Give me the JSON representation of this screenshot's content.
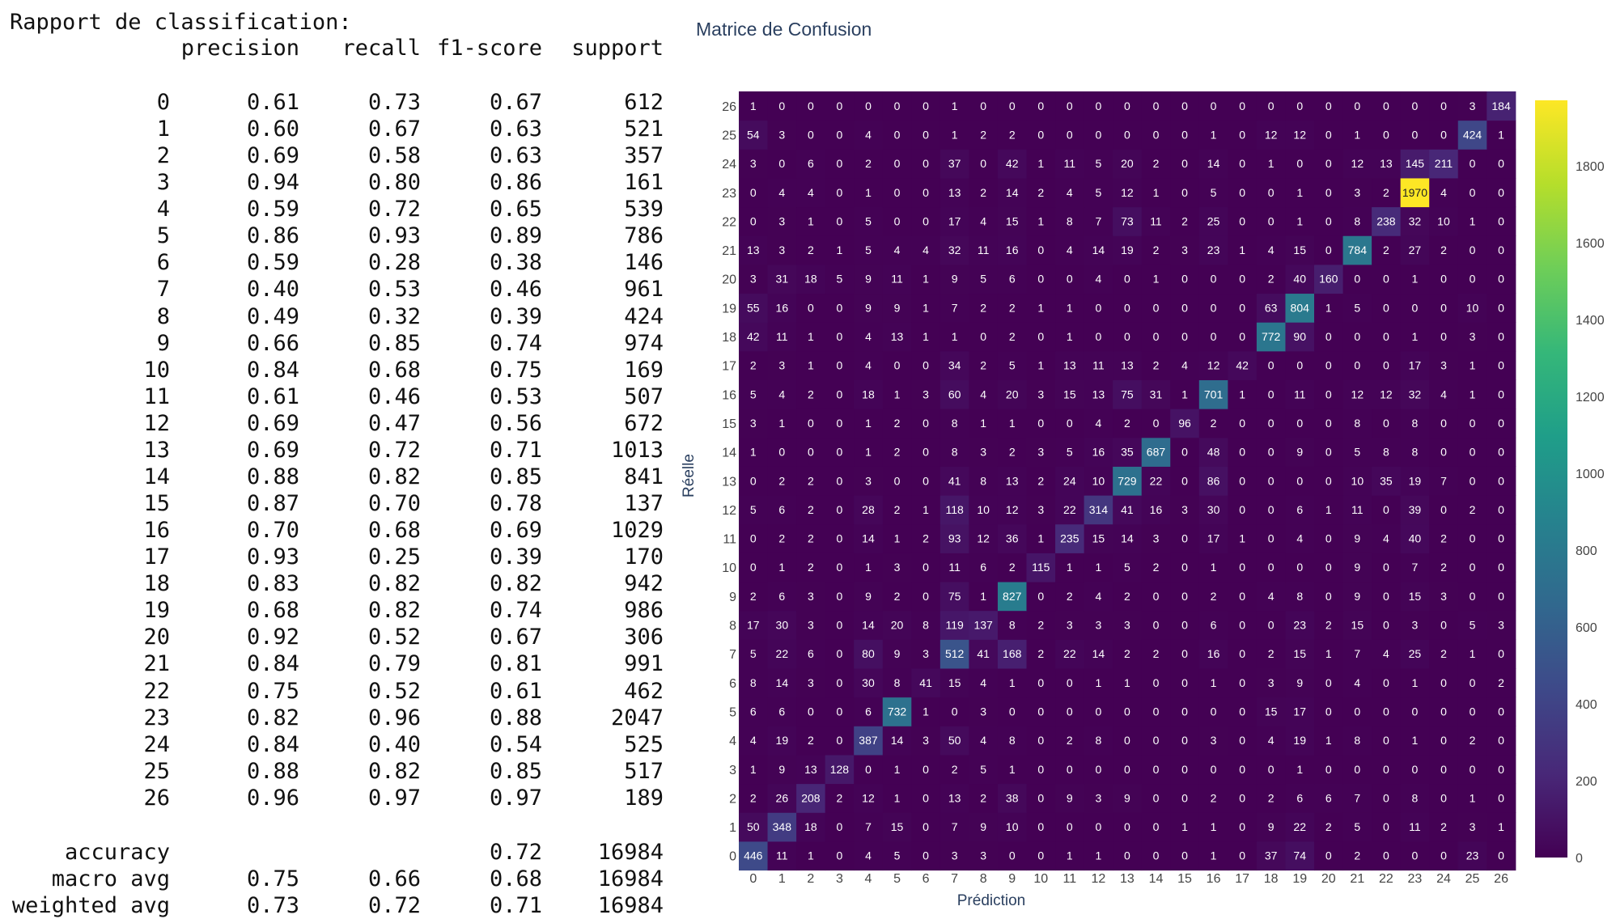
{
  "report": {
    "title": "Rapport de classification:",
    "headers": [
      "precision",
      "recall",
      "f1-score",
      "support"
    ],
    "rows": [
      [
        "0",
        "0.61",
        "0.73",
        "0.67",
        "612"
      ],
      [
        "1",
        "0.60",
        "0.67",
        "0.63",
        "521"
      ],
      [
        "2",
        "0.69",
        "0.58",
        "0.63",
        "357"
      ],
      [
        "3",
        "0.94",
        "0.80",
        "0.86",
        "161"
      ],
      [
        "4",
        "0.59",
        "0.72",
        "0.65",
        "539"
      ],
      [
        "5",
        "0.86",
        "0.93",
        "0.89",
        "786"
      ],
      [
        "6",
        "0.59",
        "0.28",
        "0.38",
        "146"
      ],
      [
        "7",
        "0.40",
        "0.53",
        "0.46",
        "961"
      ],
      [
        "8",
        "0.49",
        "0.32",
        "0.39",
        "424"
      ],
      [
        "9",
        "0.66",
        "0.85",
        "0.74",
        "974"
      ],
      [
        "10",
        "0.84",
        "0.68",
        "0.75",
        "169"
      ],
      [
        "11",
        "0.61",
        "0.46",
        "0.53",
        "507"
      ],
      [
        "12",
        "0.69",
        "0.47",
        "0.56",
        "672"
      ],
      [
        "13",
        "0.69",
        "0.72",
        "0.71",
        "1013"
      ],
      [
        "14",
        "0.88",
        "0.82",
        "0.85",
        "841"
      ],
      [
        "15",
        "0.87",
        "0.70",
        "0.78",
        "137"
      ],
      [
        "16",
        "0.70",
        "0.68",
        "0.69",
        "1029"
      ],
      [
        "17",
        "0.93",
        "0.25",
        "0.39",
        "170"
      ],
      [
        "18",
        "0.83",
        "0.82",
        "0.82",
        "942"
      ],
      [
        "19",
        "0.68",
        "0.82",
        "0.74",
        "986"
      ],
      [
        "20",
        "0.92",
        "0.52",
        "0.67",
        "306"
      ],
      [
        "21",
        "0.84",
        "0.79",
        "0.81",
        "991"
      ],
      [
        "22",
        "0.75",
        "0.52",
        "0.61",
        "462"
      ],
      [
        "23",
        "0.82",
        "0.96",
        "0.88",
        "2047"
      ],
      [
        "24",
        "0.84",
        "0.40",
        "0.54",
        "525"
      ],
      [
        "25",
        "0.88",
        "0.82",
        "0.85",
        "517"
      ],
      [
        "26",
        "0.96",
        "0.97",
        "0.97",
        "189"
      ]
    ],
    "summary": [
      [
        "accuracy",
        "",
        "",
        "0.72",
        "16984"
      ],
      [
        "macro avg",
        "0.75",
        "0.66",
        "0.68",
        "16984"
      ],
      [
        "weighted avg",
        "0.73",
        "0.72",
        "0.71",
        "16984"
      ]
    ]
  },
  "chart_data": {
    "type": "heatmap",
    "title": "Matrice de Confusion",
    "xlabel": "Prédiction",
    "ylabel": "Réelle",
    "labels": [
      0,
      1,
      2,
      3,
      4,
      5,
      6,
      7,
      8,
      9,
      10,
      11,
      12,
      13,
      14,
      15,
      16,
      17,
      18,
      19,
      20,
      21,
      22,
      23,
      24,
      25,
      26
    ],
    "colorscale": "viridis",
    "zlim": [
      0,
      1970
    ],
    "colorbar_ticks": [
      0,
      200,
      400,
      600,
      800,
      1000,
      1200,
      1400,
      1600,
      1800
    ],
    "matrix": [
      [
        446,
        11,
        1,
        0,
        4,
        5,
        0,
        3,
        3,
        0,
        0,
        1,
        1,
        0,
        0,
        0,
        1,
        0,
        37,
        74,
        0,
        2,
        0,
        0,
        0,
        23,
        0
      ],
      [
        50,
        348,
        18,
        0,
        7,
        15,
        0,
        7,
        9,
        10,
        0,
        0,
        0,
        0,
        0,
        1,
        1,
        0,
        9,
        22,
        2,
        5,
        0,
        11,
        2,
        3,
        1
      ],
      [
        2,
        26,
        208,
        2,
        12,
        1,
        0,
        13,
        2,
        38,
        0,
        9,
        3,
        9,
        0,
        0,
        2,
        0,
        2,
        6,
        6,
        7,
        0,
        8,
        0,
        1,
        0
      ],
      [
        1,
        9,
        13,
        128,
        0,
        1,
        0,
        2,
        5,
        1,
        0,
        0,
        0,
        0,
        0,
        0,
        0,
        0,
        0,
        1,
        0,
        0,
        0,
        0,
        0,
        0,
        0
      ],
      [
        4,
        19,
        2,
        0,
        387,
        14,
        3,
        50,
        4,
        8,
        0,
        2,
        8,
        0,
        0,
        0,
        3,
        0,
        4,
        19,
        1,
        8,
        0,
        1,
        0,
        2,
        0
      ],
      [
        6,
        6,
        0,
        0,
        6,
        732,
        1,
        0,
        3,
        0,
        0,
        0,
        0,
        0,
        0,
        0,
        0,
        0,
        15,
        17,
        0,
        0,
        0,
        0,
        0,
        0,
        0
      ],
      [
        8,
        14,
        3,
        0,
        30,
        8,
        41,
        15,
        4,
        1,
        0,
        0,
        1,
        1,
        0,
        0,
        1,
        0,
        3,
        9,
        0,
        4,
        0,
        1,
        0,
        0,
        2
      ],
      [
        5,
        22,
        6,
        0,
        80,
        9,
        3,
        512,
        41,
        168,
        2,
        22,
        14,
        2,
        2,
        0,
        16,
        0,
        2,
        15,
        1,
        7,
        4,
        25,
        2,
        1,
        0
      ],
      [
        17,
        30,
        3,
        0,
        14,
        20,
        8,
        119,
        137,
        8,
        2,
        3,
        3,
        3,
        0,
        0,
        6,
        0,
        0,
        23,
        2,
        15,
        0,
        3,
        0,
        5,
        3
      ],
      [
        2,
        6,
        3,
        0,
        9,
        2,
        0,
        75,
        1,
        827,
        0,
        2,
        4,
        2,
        0,
        0,
        2,
        0,
        4,
        8,
        0,
        9,
        0,
        15,
        3,
        0,
        0
      ],
      [
        0,
        1,
        2,
        0,
        1,
        3,
        0,
        11,
        6,
        2,
        115,
        1,
        1,
        5,
        2,
        0,
        1,
        0,
        0,
        0,
        0,
        9,
        0,
        7,
        2,
        0,
        0
      ],
      [
        0,
        2,
        2,
        0,
        14,
        1,
        2,
        93,
        12,
        36,
        1,
        235,
        15,
        14,
        3,
        0,
        17,
        1,
        0,
        4,
        0,
        9,
        4,
        40,
        2,
        0,
        0
      ],
      [
        5,
        6,
        2,
        0,
        28,
        2,
        1,
        118,
        10,
        12,
        3,
        22,
        314,
        41,
        16,
        3,
        30,
        0,
        0,
        6,
        1,
        11,
        0,
        39,
        0,
        2,
        0
      ],
      [
        0,
        2,
        2,
        0,
        3,
        0,
        0,
        41,
        8,
        13,
        2,
        24,
        10,
        729,
        22,
        0,
        86,
        0,
        0,
        0,
        0,
        10,
        35,
        19,
        7,
        0,
        0
      ],
      [
        1,
        0,
        0,
        0,
        1,
        2,
        0,
        8,
        3,
        2,
        3,
        5,
        16,
        35,
        687,
        0,
        48,
        0,
        0,
        9,
        0,
        5,
        8,
        8,
        0,
        0,
        0
      ],
      [
        3,
        1,
        0,
        0,
        1,
        2,
        0,
        8,
        1,
        1,
        0,
        0,
        4,
        2,
        0,
        96,
        2,
        0,
        0,
        0,
        0,
        8,
        0,
        8,
        0,
        0,
        0
      ],
      [
        5,
        4,
        2,
        0,
        18,
        1,
        3,
        60,
        4,
        20,
        3,
        15,
        13,
        75,
        31,
        1,
        701,
        1,
        0,
        11,
        0,
        12,
        12,
        32,
        4,
        1,
        0
      ],
      [
        2,
        3,
        1,
        0,
        4,
        0,
        0,
        34,
        2,
        5,
        1,
        13,
        11,
        13,
        2,
        4,
        12,
        42,
        0,
        0,
        0,
        0,
        0,
        17,
        3,
        1,
        0
      ],
      [
        42,
        11,
        1,
        0,
        4,
        13,
        1,
        1,
        0,
        2,
        0,
        1,
        0,
        0,
        0,
        0,
        0,
        0,
        772,
        90,
        0,
        0,
        0,
        1,
        0,
        3,
        0
      ],
      [
        55,
        16,
        0,
        0,
        9,
        9,
        1,
        7,
        2,
        2,
        1,
        1,
        0,
        0,
        0,
        0,
        0,
        0,
        63,
        804,
        1,
        5,
        0,
        0,
        0,
        10,
        0
      ],
      [
        3,
        31,
        18,
        5,
        9,
        11,
        1,
        9,
        5,
        6,
        0,
        0,
        4,
        0,
        1,
        0,
        0,
        0,
        2,
        40,
        160,
        0,
        0,
        1,
        0,
        0,
        0
      ],
      [
        13,
        3,
        2,
        1,
        5,
        4,
        4,
        32,
        11,
        16,
        0,
        4,
        14,
        19,
        2,
        3,
        23,
        1,
        4,
        15,
        0,
        784,
        2,
        27,
        2,
        0,
        0
      ],
      [
        0,
        3,
        1,
        0,
        5,
        0,
        0,
        17,
        4,
        15,
        1,
        8,
        7,
        73,
        11,
        2,
        25,
        0,
        0,
        1,
        0,
        8,
        238,
        32,
        10,
        1,
        0
      ],
      [
        0,
        4,
        4,
        0,
        1,
        0,
        0,
        13,
        2,
        14,
        2,
        4,
        5,
        12,
        1,
        0,
        5,
        0,
        0,
        1,
        0,
        3,
        2,
        1970,
        4,
        0,
        0
      ],
      [
        3,
        0,
        6,
        0,
        2,
        0,
        0,
        37,
        0,
        42,
        1,
        11,
        5,
        20,
        2,
        0,
        14,
        0,
        1,
        0,
        0,
        12,
        13,
        145,
        211,
        0,
        0
      ],
      [
        54,
        3,
        0,
        0,
        4,
        0,
        0,
        1,
        2,
        2,
        0,
        0,
        0,
        0,
        0,
        0,
        1,
        0,
        12,
        12,
        0,
        1,
        0,
        0,
        0,
        424,
        1
      ],
      [
        1,
        0,
        0,
        0,
        0,
        0,
        0,
        1,
        0,
        0,
        0,
        0,
        0,
        0,
        0,
        0,
        0,
        0,
        0,
        0,
        0,
        0,
        0,
        0,
        0,
        3,
        184
      ]
    ]
  }
}
